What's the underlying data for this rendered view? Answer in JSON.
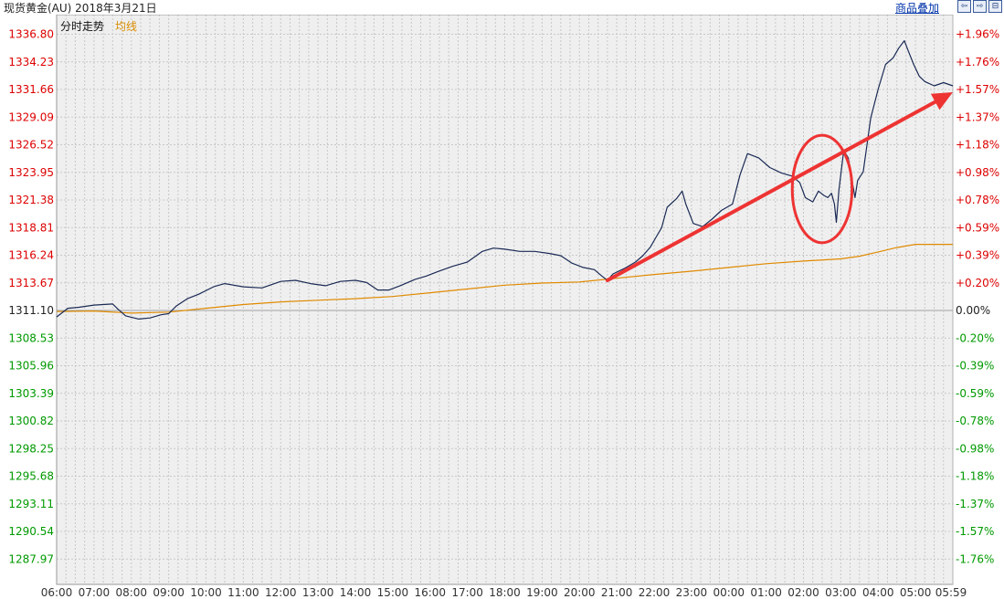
{
  "header": {
    "title": "现货黄金(AU)  2018年3月21日",
    "compare_label": "商品叠加",
    "buttons": [
      {
        "name": "prev",
        "glyph": "⇦"
      },
      {
        "name": "next",
        "glyph": "⇨"
      },
      {
        "name": "fullscreen",
        "glyph": "⊟"
      }
    ]
  },
  "legend": {
    "price_label": "分时走势",
    "avg_label": "均线"
  },
  "colors": {
    "background": "#efefef",
    "grid": "#c8c8c8",
    "price_line": "#1a2a55",
    "avg_line": "#e08a00",
    "up_text": "#dd0000",
    "down_text": "#009900",
    "base_text": "#222222",
    "annotation": "#ee3333"
  },
  "chart_data": {
    "type": "line",
    "base_price": 1311.1,
    "y_labels_left": [
      "1336.80",
      "1334.23",
      "1331.66",
      "1329.09",
      "1326.52",
      "1323.95",
      "1321.38",
      "1318.81",
      "1316.24",
      "1313.67",
      "1311.10",
      "1308.53",
      "1305.96",
      "1303.39",
      "1300.82",
      "1298.25",
      "1295.68",
      "1293.11",
      "1290.54",
      "1287.97"
    ],
    "y_labels_right": [
      "+1.96%",
      "+1.76%",
      "+1.57%",
      "+1.37%",
      "+1.18%",
      "+0.98%",
      "+0.78%",
      "+0.59%",
      "+0.39%",
      "+0.20%",
      "0.00%",
      "-0.20%",
      "-0.39%",
      "-0.59%",
      "-0.78%",
      "-0.98%",
      "-1.18%",
      "-1.37%",
      "-1.57%",
      "-1.76%"
    ],
    "x_labels": [
      "06:00",
      "07:00",
      "08:00",
      "09:00",
      "10:00",
      "11:00",
      "12:00",
      "13:00",
      "14:00",
      "15:00",
      "16:00",
      "17:00",
      "18:00",
      "19:00",
      "20:00",
      "21:00",
      "22:00",
      "23:00",
      "00:00",
      "01:00",
      "02:00",
      "03:00",
      "04:00",
      "05:00",
      "05:59"
    ],
    "x_range_hours": [
      0,
      24
    ],
    "price_series": [
      [
        0,
        1310.5
      ],
      [
        0.3,
        1311.3
      ],
      [
        0.6,
        1311.4
      ],
      [
        1.0,
        1311.6
      ],
      [
        1.5,
        1311.7
      ],
      [
        1.65,
        1311.2
      ],
      [
        1.85,
        1310.6
      ],
      [
        2.2,
        1310.3
      ],
      [
        2.5,
        1310.4
      ],
      [
        2.8,
        1310.7
      ],
      [
        3.0,
        1310.8
      ],
      [
        3.2,
        1311.5
      ],
      [
        3.5,
        1312.2
      ],
      [
        3.8,
        1312.6
      ],
      [
        4.2,
        1313.3
      ],
      [
        4.5,
        1313.6
      ],
      [
        5.0,
        1313.3
      ],
      [
        5.5,
        1313.2
      ],
      [
        6.0,
        1313.8
      ],
      [
        6.4,
        1313.9
      ],
      [
        6.8,
        1313.6
      ],
      [
        7.2,
        1313.4
      ],
      [
        7.6,
        1313.8
      ],
      [
        8.0,
        1313.9
      ],
      [
        8.3,
        1313.7
      ],
      [
        8.6,
        1313.0
      ],
      [
        8.9,
        1313.0
      ],
      [
        9.2,
        1313.4
      ],
      [
        9.6,
        1314.0
      ],
      [
        9.9,
        1314.3
      ],
      [
        10.2,
        1314.7
      ],
      [
        10.6,
        1315.2
      ],
      [
        11.0,
        1315.6
      ],
      [
        11.4,
        1316.6
      ],
      [
        11.7,
        1316.9
      ],
      [
        12.0,
        1316.8
      ],
      [
        12.4,
        1316.6
      ],
      [
        12.8,
        1316.6
      ],
      [
        13.2,
        1316.4
      ],
      [
        13.5,
        1316.2
      ],
      [
        13.8,
        1315.5
      ],
      [
        14.1,
        1315.1
      ],
      [
        14.4,
        1314.9
      ],
      [
        14.6,
        1314.3
      ],
      [
        14.75,
        1313.9
      ],
      [
        14.9,
        1314.5
      ],
      [
        15.2,
        1315.0
      ],
      [
        15.5,
        1315.6
      ],
      [
        15.7,
        1316.2
      ],
      [
        15.9,
        1317.0
      ],
      [
        16.05,
        1317.9
      ],
      [
        16.2,
        1318.8
      ],
      [
        16.35,
        1320.7
      ],
      [
        16.6,
        1321.5
      ],
      [
        16.75,
        1322.2
      ],
      [
        16.85,
        1321.0
      ],
      [
        17.05,
        1319.2
      ],
      [
        17.3,
        1318.9
      ],
      [
        17.55,
        1319.6
      ],
      [
        17.8,
        1320.4
      ],
      [
        18.1,
        1321.0
      ],
      [
        18.3,
        1323.7
      ],
      [
        18.5,
        1325.7
      ],
      [
        18.8,
        1325.3
      ],
      [
        19.1,
        1324.4
      ],
      [
        19.4,
        1323.9
      ],
      [
        19.7,
        1323.6
      ],
      [
        19.9,
        1323.0
      ],
      [
        20.05,
        1321.6
      ],
      [
        20.25,
        1321.2
      ],
      [
        20.4,
        1322.2
      ],
      [
        20.55,
        1321.8
      ],
      [
        20.65,
        1321.6
      ],
      [
        20.75,
        1322.0
      ],
      [
        20.83,
        1321.0
      ],
      [
        20.88,
        1319.3
      ],
      [
        20.95,
        1322.3
      ],
      [
        21.08,
        1326.0
      ],
      [
        21.2,
        1325.3
      ],
      [
        21.3,
        1323.2
      ],
      [
        21.38,
        1321.6
      ],
      [
        21.45,
        1323.2
      ],
      [
        21.6,
        1324.0
      ],
      [
        21.8,
        1329.0
      ],
      [
        22.0,
        1331.7
      ],
      [
        22.2,
        1334.0
      ],
      [
        22.4,
        1334.6
      ],
      [
        22.55,
        1335.5
      ],
      [
        22.7,
        1336.2
      ],
      [
        22.8,
        1335.3
      ],
      [
        22.95,
        1334.0
      ],
      [
        23.1,
        1332.9
      ],
      [
        23.25,
        1332.4
      ],
      [
        23.5,
        1332.0
      ],
      [
        23.75,
        1332.3
      ],
      [
        24.0,
        1332.0
      ]
    ],
    "avg_series": [
      [
        0,
        1311.0
      ],
      [
        1.0,
        1311.05
      ],
      [
        2.0,
        1310.85
      ],
      [
        3.0,
        1310.95
      ],
      [
        4.0,
        1311.3
      ],
      [
        5.0,
        1311.65
      ],
      [
        6.0,
        1311.9
      ],
      [
        7.0,
        1312.05
      ],
      [
        8.0,
        1312.2
      ],
      [
        9.0,
        1312.4
      ],
      [
        10.0,
        1312.75
      ],
      [
        11.0,
        1313.1
      ],
      [
        12.0,
        1313.45
      ],
      [
        13.0,
        1313.65
      ],
      [
        14.0,
        1313.75
      ],
      [
        15.0,
        1314.1
      ],
      [
        16.0,
        1314.45
      ],
      [
        17.0,
        1314.75
      ],
      [
        18.0,
        1315.1
      ],
      [
        19.0,
        1315.45
      ],
      [
        20.0,
        1315.7
      ],
      [
        21.0,
        1315.9
      ],
      [
        21.5,
        1316.15
      ],
      [
        22.0,
        1316.55
      ],
      [
        22.5,
        1316.95
      ],
      [
        23.0,
        1317.25
      ],
      [
        23.5,
        1317.25
      ],
      [
        24.0,
        1317.25
      ]
    ]
  },
  "annotations": {
    "arrow": {
      "from": [
        14.75,
        1313.9
      ],
      "to": [
        24.0,
        1331.4
      ]
    },
    "circle": {
      "center": [
        20.5,
        1322.4
      ],
      "radius_hours": 0.8,
      "radius_price": 5.0
    }
  }
}
